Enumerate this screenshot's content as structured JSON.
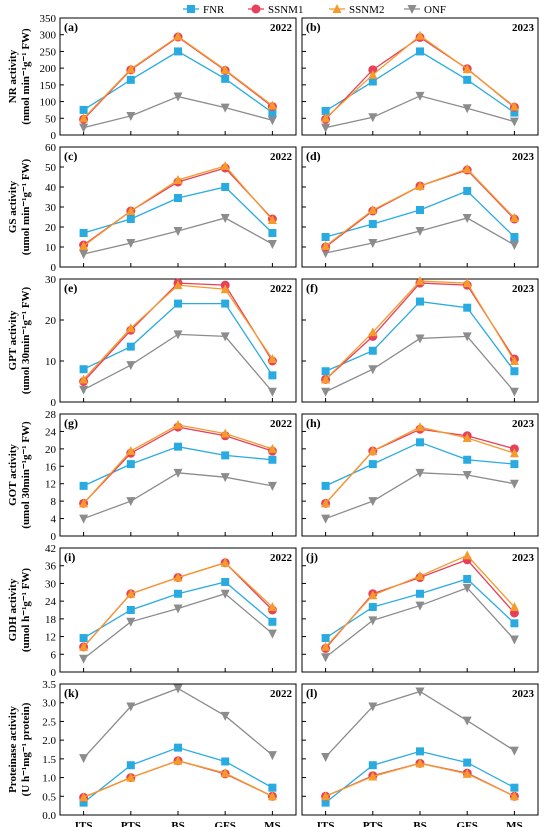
{
  "legend": [
    {
      "name": "FNR",
      "color": "#29ABE2",
      "marker": "square"
    },
    {
      "name": "SSNM1",
      "color": "#E8405A",
      "marker": "circle"
    },
    {
      "name": "SSNM2",
      "color": "#F59A2B",
      "marker": "triangle-up"
    },
    {
      "name": "ONF",
      "color": "#8C8C8C",
      "marker": "triangle-down"
    }
  ],
  "rows": [
    {
      "ylabel": [
        "NR activity",
        "(nmol min⁻¹g⁻¹ FW)"
      ],
      "ylim": [
        0,
        350
      ],
      "ticks": [
        0,
        50,
        100,
        150,
        200,
        250,
        300,
        350
      ],
      "tick_labels": [
        "0",
        "50",
        "100",
        "150",
        "200",
        "250",
        "300",
        "350"
      ]
    },
    {
      "ylabel": [
        "GS activity",
        "(umol min⁻¹g⁻¹ FW)"
      ],
      "ylim": [
        0,
        60
      ],
      "ticks": [
        0,
        10,
        20,
        30,
        40,
        50,
        60
      ],
      "tick_labels": [
        "0",
        "10",
        "20",
        "30",
        "40",
        "50",
        "60"
      ]
    },
    {
      "ylabel": [
        "GPT activity",
        "(umol 30min⁻¹g⁻¹ FW)"
      ],
      "ylim": [
        0,
        30
      ],
      "ticks": [
        0,
        10,
        20,
        30
      ],
      "tick_labels": [
        "0",
        "10",
        "20",
        "30"
      ]
    },
    {
      "ylabel": [
        "GOT activity",
        "(umol 30min⁻¹g⁻¹ FW)"
      ],
      "ylim": [
        0,
        28
      ],
      "ticks": [
        0,
        4,
        8,
        12,
        16,
        20,
        24,
        28
      ],
      "tick_labels": [
        "0",
        "4",
        "8",
        "12",
        "16",
        "20",
        "24",
        "28"
      ]
    },
    {
      "ylabel": [
        "GDH activity",
        "(umol h⁻¹g⁻¹ FW)"
      ],
      "ylim": [
        0,
        42
      ],
      "ticks": [
        0,
        6,
        12,
        18,
        24,
        30,
        36,
        42
      ],
      "tick_labels": [
        "0",
        "6",
        "12",
        "18",
        "24",
        "30",
        "36",
        "42"
      ]
    },
    {
      "ylabel": [
        "Proteinase activity",
        "(U h⁻¹mg⁻¹ protein)"
      ],
      "ylim": [
        0,
        3.5
      ],
      "ticks": [
        0,
        0.5,
        1,
        1.5,
        2,
        2.5,
        3,
        3.5
      ],
      "tick_labels": [
        "0.0",
        "0.5",
        "1.0",
        "1.5",
        "2.0",
        "2.5",
        "3.0",
        "3.5"
      ]
    }
  ],
  "chart_data": [
    {
      "panel": "(a)",
      "year": "2022",
      "type": "line",
      "categories": [
        "ITS",
        "PTS",
        "BS",
        "GFS",
        "MS"
      ],
      "ylim": [
        0,
        350
      ],
      "series": [
        {
          "name": "FNR",
          "values": [
            75,
            165,
            250,
            168,
            67
          ]
        },
        {
          "name": "SSNM1",
          "values": [
            47,
            195,
            293,
            193,
            85
          ]
        },
        {
          "name": "SSNM2",
          "values": [
            50,
            197,
            295,
            195,
            88
          ]
        },
        {
          "name": "ONF",
          "values": [
            22,
            57,
            115,
            82,
            44
          ]
        }
      ]
    },
    {
      "panel": "(b)",
      "year": "2023",
      "type": "line",
      "categories": [
        "ITS",
        "PTS",
        "BS",
        "GFS",
        "MS"
      ],
      "ylim": [
        0,
        350
      ],
      "series": [
        {
          "name": "FNR",
          "values": [
            72,
            160,
            250,
            165,
            67
          ]
        },
        {
          "name": "SSNM1",
          "values": [
            47,
            195,
            292,
            198,
            83
          ]
        },
        {
          "name": "SSNM2",
          "values": [
            50,
            180,
            297,
            197,
            85
          ]
        },
        {
          "name": "ONF",
          "values": [
            22,
            53,
            117,
            80,
            40
          ]
        }
      ]
    },
    {
      "panel": "(c)",
      "year": "2022",
      "type": "line",
      "categories": [
        "ITS",
        "PTS",
        "BS",
        "GFS",
        "MS"
      ],
      "ylim": [
        0,
        60
      ],
      "series": [
        {
          "name": "FNR",
          "values": [
            17,
            24,
            34.5,
            40,
            17
          ]
        },
        {
          "name": "SSNM1",
          "values": [
            11,
            28,
            42.5,
            49.5,
            24
          ]
        },
        {
          "name": "SSNM2",
          "values": [
            10.5,
            28,
            43.5,
            50.5,
            23.5
          ]
        },
        {
          "name": "ONF",
          "values": [
            6.5,
            12,
            18,
            24.5,
            11.5
          ]
        }
      ]
    },
    {
      "panel": "(d)",
      "year": "2023",
      "type": "line",
      "categories": [
        "ITS",
        "PTS",
        "BS",
        "GFS",
        "MS"
      ],
      "ylim": [
        0,
        60
      ],
      "series": [
        {
          "name": "FNR",
          "values": [
            15,
            21.5,
            28.5,
            38,
            15
          ]
        },
        {
          "name": "SSNM1",
          "values": [
            10,
            28,
            40.5,
            48.5,
            24
          ]
        },
        {
          "name": "SSNM2",
          "values": [
            10.5,
            28.5,
            40.5,
            49,
            24.5
          ]
        },
        {
          "name": "ONF",
          "values": [
            7,
            12,
            18,
            24.5,
            11
          ]
        }
      ]
    },
    {
      "panel": "(e)",
      "year": "2022",
      "type": "line",
      "categories": [
        "ITS",
        "PTS",
        "BS",
        "GFS",
        "MS"
      ],
      "ylim": [
        0,
        30
      ],
      "series": [
        {
          "name": "FNR",
          "values": [
            8,
            13.5,
            24,
            24,
            6.5
          ]
        },
        {
          "name": "SSNM1",
          "values": [
            5,
            17.5,
            29,
            28.5,
            10
          ]
        },
        {
          "name": "SSNM2",
          "values": [
            5.5,
            18,
            28.5,
            27.5,
            10.5
          ]
        },
        {
          "name": "ONF",
          "values": [
            3,
            9,
            16.5,
            16,
            2.5
          ]
        }
      ]
    },
    {
      "panel": "(f)",
      "year": "2023",
      "type": "line",
      "categories": [
        "ITS",
        "PTS",
        "BS",
        "GFS",
        "MS"
      ],
      "ylim": [
        0,
        30
      ],
      "series": [
        {
          "name": "FNR",
          "values": [
            7.5,
            12.5,
            24.5,
            23,
            7.5
          ]
        },
        {
          "name": "SSNM1",
          "values": [
            5.5,
            16,
            29,
            28.5,
            10.5
          ]
        },
        {
          "name": "SSNM2",
          "values": [
            5.5,
            17,
            29.5,
            29,
            10
          ]
        },
        {
          "name": "ONF",
          "values": [
            2.5,
            8,
            15.5,
            16,
            2.5
          ]
        }
      ]
    },
    {
      "panel": "(g)",
      "year": "2022",
      "type": "line",
      "categories": [
        "ITS",
        "PTS",
        "BS",
        "GFS",
        "MS"
      ],
      "ylim": [
        0,
        28
      ],
      "series": [
        {
          "name": "FNR",
          "values": [
            11.5,
            16.5,
            20.5,
            18.5,
            17.5
          ]
        },
        {
          "name": "SSNM1",
          "values": [
            7.5,
            19,
            25,
            23,
            19.5
          ]
        },
        {
          "name": "SSNM2",
          "values": [
            7.5,
            19.5,
            25.5,
            23.5,
            20
          ]
        },
        {
          "name": "ONF",
          "values": [
            4,
            8,
            14.5,
            13.5,
            11.5
          ]
        }
      ]
    },
    {
      "panel": "(h)",
      "year": "2023",
      "type": "line",
      "categories": [
        "ITS",
        "PTS",
        "BS",
        "GFS",
        "MS"
      ],
      "ylim": [
        0,
        28
      ],
      "series": [
        {
          "name": "FNR",
          "values": [
            11.5,
            16.5,
            21.5,
            17.5,
            16.5
          ]
        },
        {
          "name": "SSNM1",
          "values": [
            7.5,
            19.5,
            24.5,
            23,
            20
          ]
        },
        {
          "name": "SSNM2",
          "values": [
            7.5,
            19.5,
            25,
            22.5,
            19
          ]
        },
        {
          "name": "ONF",
          "values": [
            4,
            8,
            14.5,
            14,
            12
          ]
        }
      ]
    },
    {
      "panel": "(i)",
      "year": "2022",
      "type": "line",
      "categories": [
        "ITS",
        "PTS",
        "BS",
        "GFS",
        "MS"
      ],
      "ylim": [
        0,
        42
      ],
      "series": [
        {
          "name": "FNR",
          "values": [
            11.5,
            21,
            26.5,
            30.5,
            17
          ]
        },
        {
          "name": "SSNM1",
          "values": [
            8.5,
            26.5,
            32,
            37,
            21
          ]
        },
        {
          "name": "SSNM2",
          "values": [
            8.5,
            26.5,
            32,
            37,
            22
          ]
        },
        {
          "name": "ONF",
          "values": [
            4.5,
            17,
            21.5,
            26.5,
            13
          ]
        }
      ]
    },
    {
      "panel": "(j)",
      "year": "2023",
      "type": "line",
      "categories": [
        "ITS",
        "PTS",
        "BS",
        "GFS",
        "MS"
      ],
      "ylim": [
        0,
        42
      ],
      "series": [
        {
          "name": "FNR",
          "values": [
            11.5,
            22,
            26.5,
            31.5,
            16.5
          ]
        },
        {
          "name": "SSNM1",
          "values": [
            8,
            26.5,
            32,
            38,
            20
          ]
        },
        {
          "name": "SSNM2",
          "values": [
            8.5,
            26,
            32.5,
            39.5,
            22
          ]
        },
        {
          "name": "ONF",
          "values": [
            5,
            17.5,
            22.5,
            28.5,
            11
          ]
        }
      ]
    },
    {
      "panel": "(k)",
      "year": "2022",
      "type": "line",
      "categories": [
        "ITS",
        "PTS",
        "BS",
        "GFS",
        "MS"
      ],
      "ylim": [
        0,
        3.5
      ],
      "series": [
        {
          "name": "FNR",
          "values": [
            0.33,
            1.33,
            1.8,
            1.43,
            0.73
          ]
        },
        {
          "name": "SSNM1",
          "values": [
            0.47,
            1.0,
            1.45,
            1.1,
            0.5
          ]
        },
        {
          "name": "SSNM2",
          "values": [
            0.47,
            1.0,
            1.45,
            1.12,
            0.5
          ]
        },
        {
          "name": "ONF",
          "values": [
            1.52,
            2.9,
            3.38,
            2.65,
            1.6
          ]
        }
      ]
    },
    {
      "panel": "(l)",
      "year": "2023",
      "type": "line",
      "categories": [
        "ITS",
        "PTS",
        "BS",
        "GFS",
        "MS"
      ],
      "ylim": [
        0,
        3.5
      ],
      "series": [
        {
          "name": "FNR",
          "values": [
            0.33,
            1.33,
            1.7,
            1.4,
            0.73
          ]
        },
        {
          "name": "SSNM1",
          "values": [
            0.5,
            1.05,
            1.38,
            1.12,
            0.5
          ]
        },
        {
          "name": "SSNM2",
          "values": [
            0.5,
            1.03,
            1.38,
            1.1,
            0.5
          ]
        },
        {
          "name": "ONF",
          "values": [
            1.55,
            2.9,
            3.3,
            2.52,
            1.72
          ]
        }
      ]
    }
  ]
}
